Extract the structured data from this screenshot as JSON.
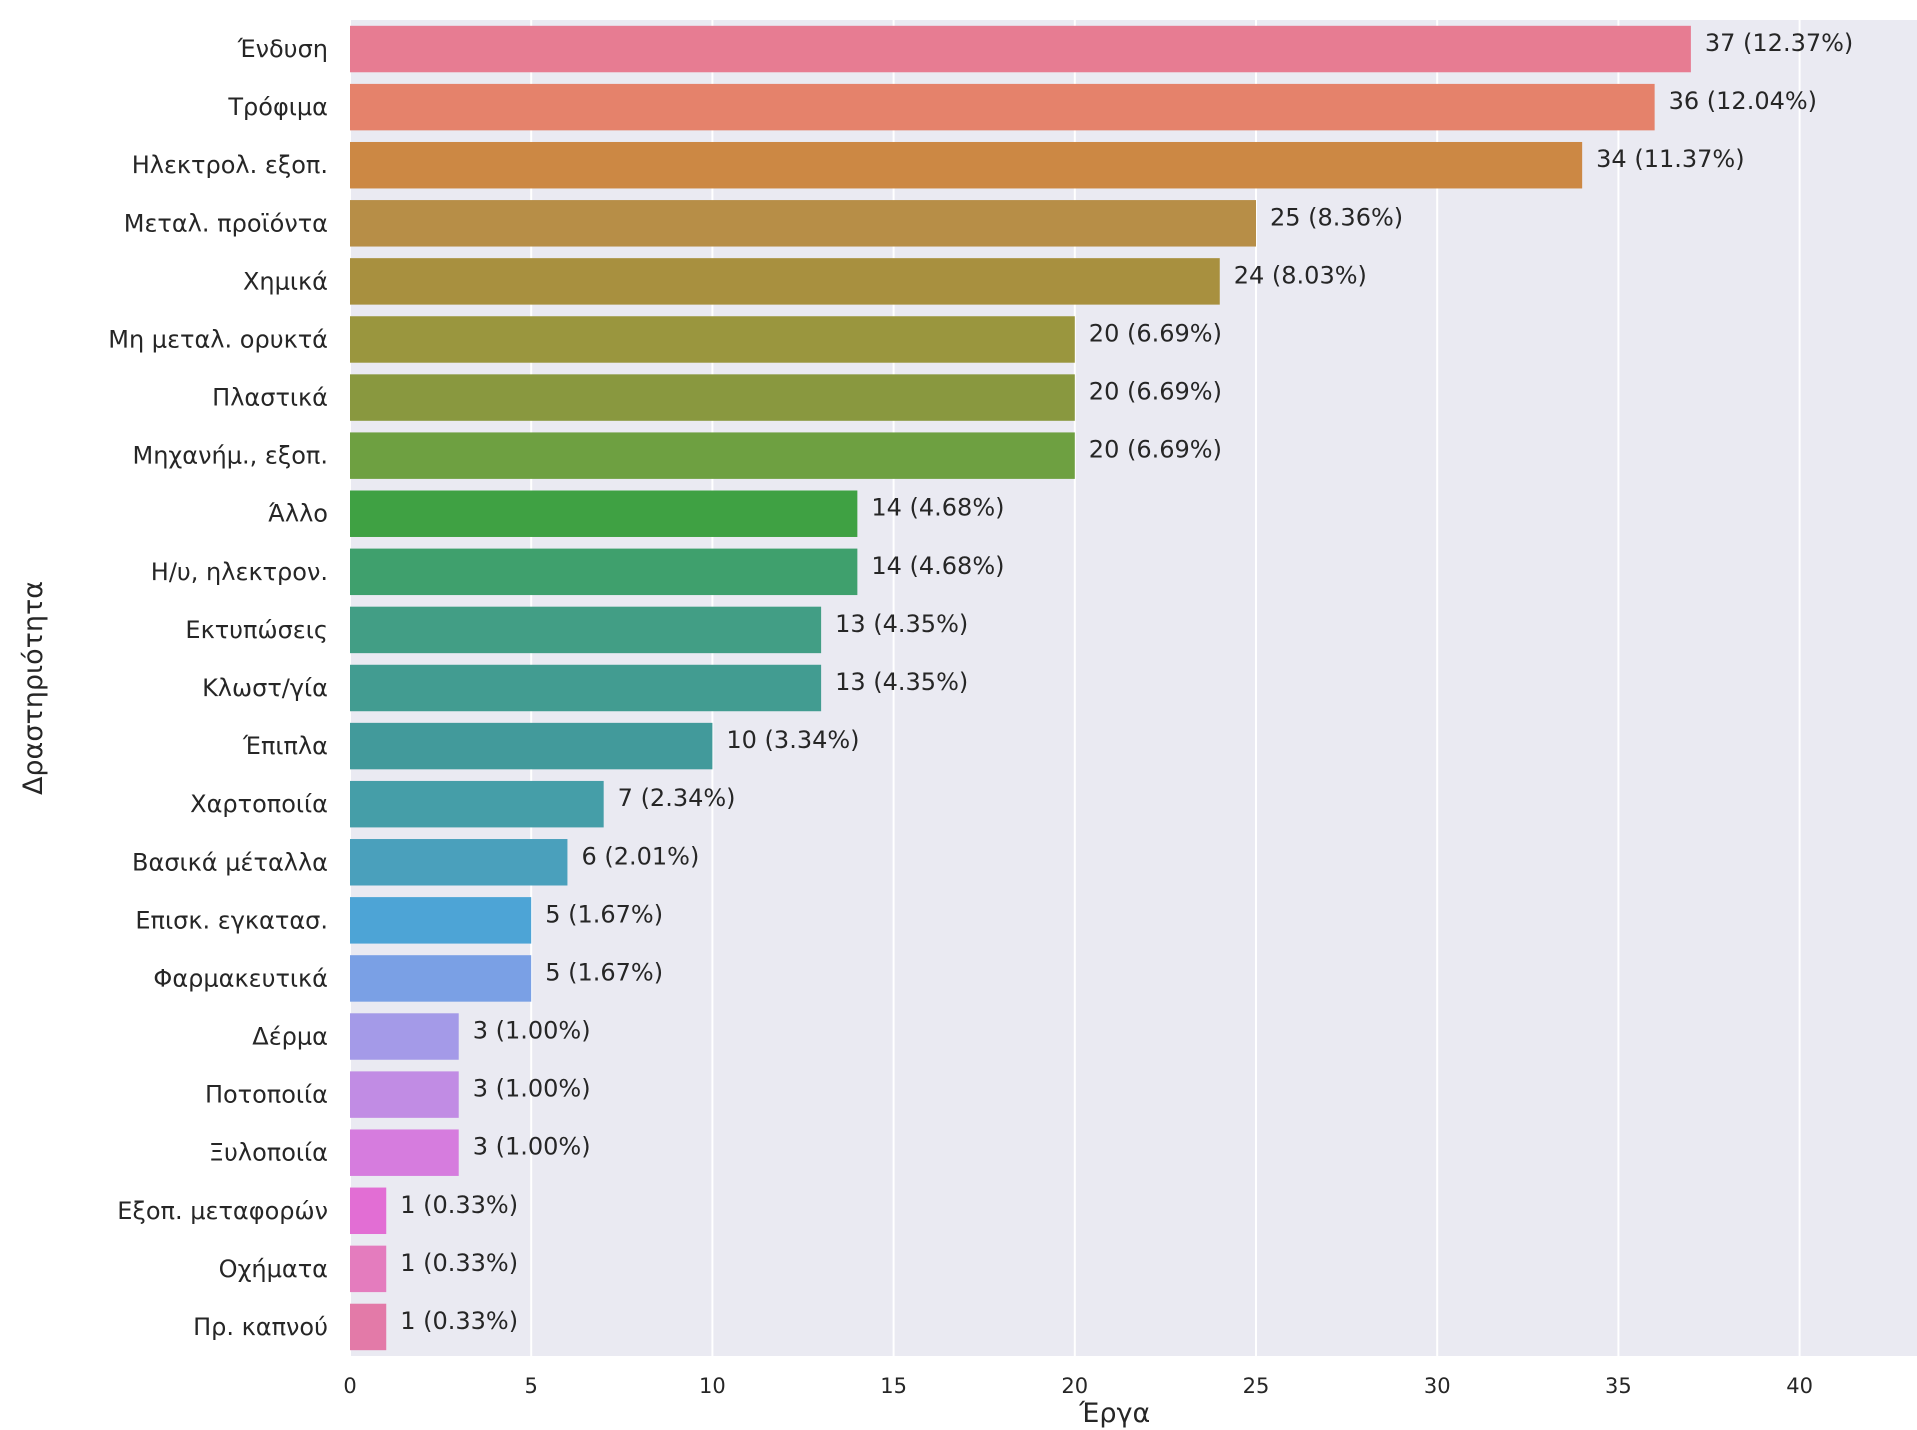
{
  "chart_data": {
    "type": "bar",
    "orientation": "horizontal",
    "xlabel": "Έργα",
    "ylabel": "Δραστηριότητα",
    "xlim": [
      0,
      43
    ],
    "xticks": [
      0,
      5,
      10,
      15,
      20,
      25,
      30,
      35,
      40
    ],
    "grid": true,
    "background": "#eaeaf2",
    "categories": [
      "Ένδυση",
      "Τρόφιμα",
      "Ηλεκτρολ. εξοπ.",
      "Μεταλ. προϊόντα",
      "Χημικά",
      "Μη μεταλ. ορυκτά",
      "Πλαστικά",
      "Μηχανήμ., εξοπ.",
      "Άλλο",
      "Η/υ, ηλεκτρον.",
      "Εκτυπώσεις",
      "Κλωστ/γία",
      "Έπιπλα",
      "Χαρτοποιία",
      "Βασικά μέταλλα",
      "Επισκ. εγκατασ.",
      "Φαρμακευτικά",
      "Δέρμα",
      "Ποτοποιία",
      "Ξυλοποιία",
      "Εξοπ. μεταφορών",
      "Οχήματα",
      "Πρ. καπνού"
    ],
    "values": [
      37,
      36,
      34,
      25,
      24,
      20,
      20,
      20,
      14,
      14,
      13,
      13,
      10,
      7,
      6,
      5,
      5,
      3,
      3,
      3,
      1,
      1,
      1
    ],
    "data_labels": [
      "37 (12.37%)",
      "36 (12.04%)",
      "34 (11.37%)",
      "25 (8.36%)",
      "24 (8.03%)",
      "20 (6.69%)",
      "20 (6.69%)",
      "20 (6.69%)",
      "14 (4.68%)",
      "14 (4.68%)",
      "13 (4.35%)",
      "13 (4.35%)",
      "10 (3.34%)",
      "7 (2.34%)",
      "6 (2.01%)",
      "5 (1.67%)",
      "5 (1.67%)",
      "3 (1.00%)",
      "3 (1.00%)",
      "3 (1.00%)",
      "1 (0.33%)",
      "1 (0.33%)",
      "1 (0.33%)"
    ],
    "colors": [
      "#e77c92",
      "#e5826b",
      "#cc8844",
      "#b78e47",
      "#a8903f",
      "#9a963e",
      "#89983f",
      "#6ea041",
      "#3fa143",
      "#3fa06d",
      "#429e85",
      "#429c91",
      "#429a9b",
      "#459ea8",
      "#4aa0bc",
      "#4da4d6",
      "#7aa0e5",
      "#a49ae8",
      "#c18ce4",
      "#d67cde",
      "#e26ed4",
      "#e47cbe",
      "#e37aa8"
    ]
  }
}
